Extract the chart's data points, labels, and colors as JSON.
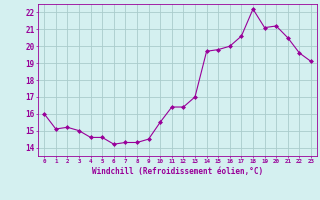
{
  "x": [
    0,
    1,
    2,
    3,
    4,
    5,
    6,
    7,
    8,
    9,
    10,
    11,
    12,
    13,
    14,
    15,
    16,
    17,
    18,
    19,
    20,
    21,
    22,
    23
  ],
  "y": [
    16.0,
    15.1,
    15.2,
    15.0,
    14.6,
    14.6,
    14.2,
    14.3,
    14.3,
    14.5,
    15.5,
    16.4,
    16.4,
    17.0,
    19.7,
    19.8,
    20.0,
    20.6,
    22.2,
    21.1,
    21.2,
    20.5,
    19.6,
    19.1
  ],
  "line_color": "#990099",
  "marker": "D",
  "markersize": 2,
  "linewidth": 0.8,
  "bg_color": "#d4f0f0",
  "grid_color": "#aacccc",
  "xlabel": "Windchill (Refroidissement éolien,°C)",
  "xlabel_color": "#990099",
  "tick_color": "#990099",
  "ylim": [
    13.5,
    22.5
  ],
  "yticks": [
    14,
    15,
    16,
    17,
    18,
    19,
    20,
    21,
    22
  ],
  "xlim": [
    -0.5,
    23.5
  ],
  "xticks": [
    0,
    1,
    2,
    3,
    4,
    5,
    6,
    7,
    8,
    9,
    10,
    11,
    12,
    13,
    14,
    15,
    16,
    17,
    18,
    19,
    20,
    21,
    22,
    23
  ],
  "figsize": [
    3.2,
    2.0
  ],
  "dpi": 100
}
